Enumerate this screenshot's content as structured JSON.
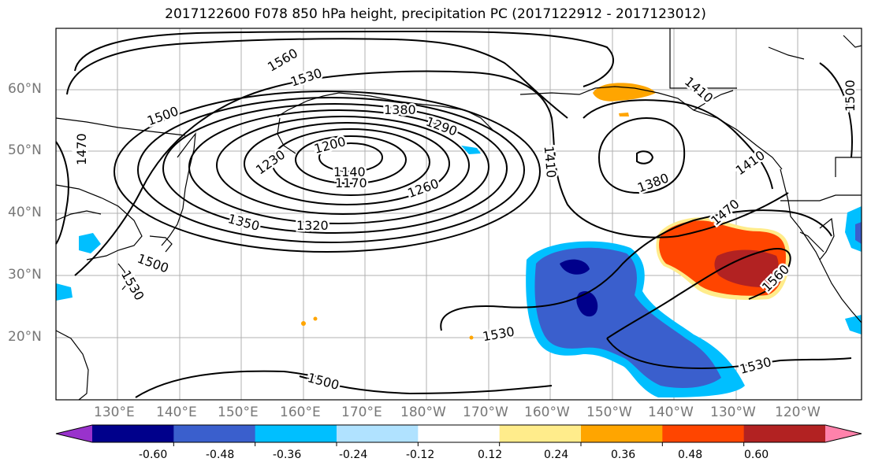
{
  "title": "2017122600 F078 850 hPa height, precipitation PC (2017122912 - 2017123012)",
  "lat_labels": [
    "60°N",
    "50°N",
    "40°N",
    "30°N",
    "20°N"
  ],
  "lon_labels": [
    "130°E",
    "140°E",
    "150°E",
    "160°E",
    "170°E",
    "180°W",
    "170°W",
    "160°W",
    "150°W",
    "140°W",
    "130°W",
    "120°W"
  ],
  "contour_labels": [
    "1560",
    "1530",
    "1500",
    "1470",
    "1380",
    "1290",
    "1230",
    "1200",
    "1140",
    "1170",
    "1260",
    "1350",
    "1320",
    "1500",
    "1530",
    "1410",
    "1380",
    "1410",
    "1470",
    "1410",
    "1500",
    "1530",
    "1500",
    "1560",
    "1530"
  ],
  "colorbar": {
    "colors": [
      "#9932cc",
      "#00008b",
      "#3a5fcd",
      "#00bfff",
      "#b0e2ff",
      "#ffffff",
      "#ffec8b",
      "#ffa500",
      "#ff4500",
      "#b22222",
      "#ff82ab"
    ],
    "tick_labels": [
      "-0.60",
      "-0.48",
      "-0.36",
      "-0.24",
      "-0.12",
      "0.12",
      "0.24",
      "0.36",
      "0.48",
      "0.60"
    ]
  }
}
